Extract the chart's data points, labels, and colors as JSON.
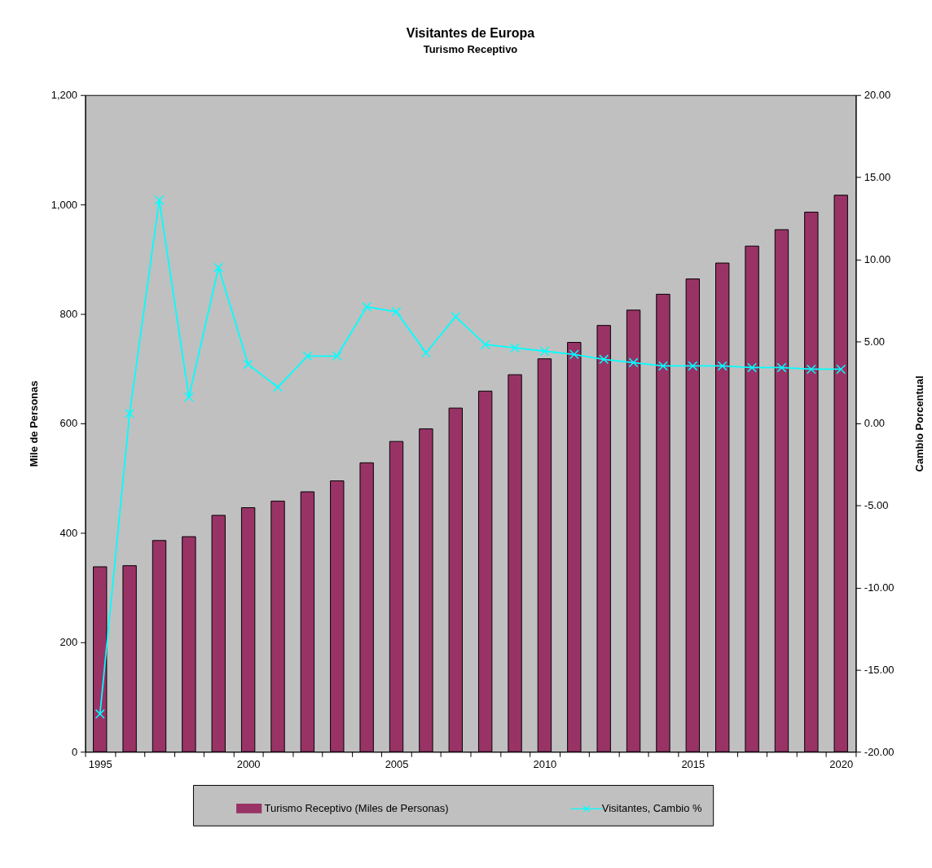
{
  "chart_data": {
    "type": "bar",
    "title": "Visitantes de Europa",
    "subtitle": "Turismo Receptivo",
    "ylabel": "Mile de Personas",
    "y2label": "Cambio Porcentual",
    "categories": [
      "1995",
      null,
      null,
      null,
      null,
      "2000",
      null,
      null,
      null,
      null,
      "2005",
      null,
      null,
      null,
      null,
      "2010",
      null,
      null,
      null,
      null,
      "2015",
      null,
      null,
      null,
      null,
      "2020"
    ],
    "series": [
      {
        "name": "Turismo Receptivo (Miles de Personas)",
        "color": "#993366",
        "values": [
          338,
          340,
          386,
          393,
          432,
          446,
          458,
          475,
          495,
          528,
          567,
          590,
          628,
          659,
          689,
          718,
          748,
          779,
          807,
          836,
          864,
          893,
          924,
          954,
          986,
          1017
        ]
      },
      {
        "name": "Visitantes, Cambio %",
        "type": "line",
        "axis": "y2",
        "color": "#00ffff",
        "marker": "cross",
        "line_style": "solid",
        "values": [
          -17.7,
          0.6,
          13.6,
          1.6,
          9.5,
          3.6,
          2.2,
          4.1,
          4.1,
          7.1,
          6.8,
          4.3,
          6.5,
          4.8,
          4.6,
          4.4,
          4.2,
          3.9,
          3.7,
          3.5,
          3.5,
          3.5,
          3.4,
          3.4,
          3.3,
          3.3
        ]
      }
    ],
    "ylim": [
      0,
      1200
    ],
    "yticks": [
      0,
      200,
      400,
      600,
      800,
      {
        "value": 1000,
        "label": "1,000"
      },
      {
        "value": 1200,
        "label": "1,200"
      }
    ],
    "y2lim": [
      -20,
      20
    ],
    "y2ticks": [
      {
        "value": -20,
        "label": "-20.00"
      },
      {
        "value": -15,
        "label": "-15.00"
      },
      {
        "value": -10,
        "label": "-10.00"
      },
      {
        "value": -5,
        "label": "-5.00"
      },
      {
        "value": 0,
        "label": "0.00"
      },
      {
        "value": 5,
        "label": "5.00"
      },
      {
        "value": 10,
        "label": "10.00"
      },
      {
        "value": 15,
        "label": "15.00"
      },
      {
        "value": 20,
        "label": "20.00"
      }
    ],
    "legend": "bottom"
  }
}
